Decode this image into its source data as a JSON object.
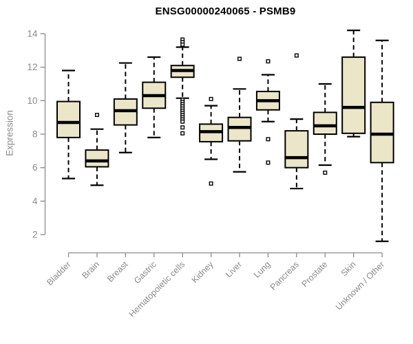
{
  "page": {
    "background": "#ffffff"
  },
  "chart_data": {
    "type": "boxplot",
    "title": "ENSG00000240065 - PSMB9",
    "ylabel": "Expression",
    "xlabel": "",
    "ylim": [
      2,
      14
    ],
    "yticks": [
      2,
      4,
      6,
      8,
      10,
      12,
      14
    ],
    "grid": false,
    "legend": "none",
    "colors": {
      "box_fill": "#ece6c9",
      "box_stroke": "#000000",
      "median": "#000000",
      "whisker": "#000000",
      "axis": "#8a8a8a",
      "tick_label": "#8a8a8a",
      "title": "#000000"
    },
    "categories": [
      "Bladder",
      "Brain",
      "Breast",
      "Gastric",
      "Hematopoietic cells",
      "Kidney",
      "Liver",
      "Lung",
      "Pancreas",
      "Prostate",
      "Skin",
      "Unknown / Other"
    ],
    "series": [
      {
        "category": "Bladder",
        "whisker_low": 5.35,
        "q1": 7.8,
        "median": 8.7,
        "q3": 9.95,
        "whisker_high": 11.8,
        "outliers": []
      },
      {
        "category": "Brain",
        "whisker_low": 4.95,
        "q1": 6.05,
        "median": 6.4,
        "q3": 7.05,
        "whisker_high": 8.3,
        "outliers": [
          9.15
        ]
      },
      {
        "category": "Breast",
        "whisker_low": 6.9,
        "q1": 8.55,
        "median": 9.4,
        "q3": 10.1,
        "whisker_high": 12.25,
        "outliers": []
      },
      {
        "category": "Gastric",
        "whisker_low": 7.8,
        "q1": 9.55,
        "median": 10.3,
        "q3": 11.1,
        "whisker_high": 12.6,
        "outliers": []
      },
      {
        "category": "Hematopoietic cells",
        "whisker_low": 10.15,
        "q1": 11.4,
        "median": 11.8,
        "q3": 12.1,
        "whisker_high": 13.2,
        "outliers": [
          13.65,
          13.5,
          13.35,
          10.05,
          9.92,
          9.79,
          9.66,
          9.53,
          9.4,
          9.27,
          9.14,
          9.01,
          8.88,
          8.75,
          8.4,
          8.05
        ]
      },
      {
        "category": "Kidney",
        "whisker_low": 6.5,
        "q1": 7.55,
        "median": 8.15,
        "q3": 8.6,
        "whisker_high": 9.7,
        "outliers": [
          10.1,
          5.05
        ]
      },
      {
        "category": "Liver",
        "whisker_low": 5.75,
        "q1": 7.6,
        "median": 8.4,
        "q3": 9.0,
        "whisker_high": 10.7,
        "outliers": [
          12.5
        ]
      },
      {
        "category": "Lung",
        "whisker_low": 8.75,
        "q1": 9.45,
        "median": 10.0,
        "q3": 10.55,
        "whisker_high": 11.55,
        "outliers": [
          12.35,
          7.7,
          6.3
        ]
      },
      {
        "category": "Pancreas",
        "whisker_low": 4.75,
        "q1": 6.0,
        "median": 6.6,
        "q3": 8.2,
        "whisker_high": 8.9,
        "outliers": [
          12.7
        ]
      },
      {
        "category": "Prostate",
        "whisker_low": 6.15,
        "q1": 8.0,
        "median": 8.5,
        "q3": 9.3,
        "whisker_high": 11.0,
        "outliers": [
          5.7
        ]
      },
      {
        "category": "Skin",
        "whisker_low": 7.85,
        "q1": 8.05,
        "median": 9.6,
        "q3": 12.6,
        "whisker_high": 14.2,
        "outliers": []
      },
      {
        "category": "Unknown / Other",
        "whisker_low": 1.6,
        "q1": 6.3,
        "median": 8.0,
        "q3": 9.9,
        "whisker_high": 13.6,
        "outliers": []
      }
    ]
  }
}
